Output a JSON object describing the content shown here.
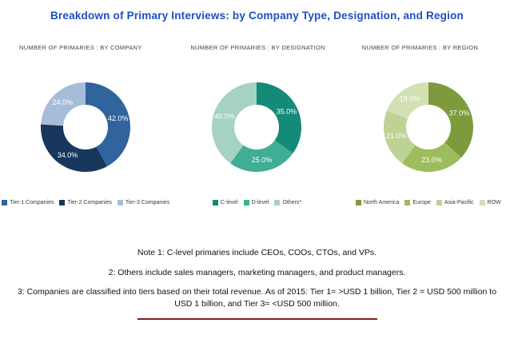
{
  "title": "Breakdown  of Primary Interviews:  by Company Type, Designation,  and Region",
  "accent_colors": {
    "title_blue": "#1d4fc4",
    "footer_red": "#8c1a1a"
  },
  "chart_data": [
    {
      "type": "pie",
      "variant": "donut",
      "title": "NUMBER OF PRIMARIES : BY COMPANY",
      "start_angle_deg": -90,
      "direction": "clockwise",
      "legend_position": "bottom",
      "slices": [
        {
          "label": "Tier-1 Companies",
          "value": 42.0,
          "display": "42.0%",
          "color": "#31639c"
        },
        {
          "label": "Tier-2 Companies",
          "value": 34.0,
          "display": "34.0%",
          "color": "#17375d"
        },
        {
          "label": "Tier-3 Companies",
          "value": 24.0,
          "display": "24.0%",
          "color": "#a7bcd9"
        }
      ]
    },
    {
      "type": "pie",
      "variant": "donut",
      "title": "NUMBER OF PRIMARIES : BY DESIGNATION",
      "start_angle_deg": -90,
      "direction": "clockwise",
      "legend_position": "bottom",
      "slices": [
        {
          "label": "C-level",
          "value": 35.0,
          "display": "35.0%",
          "color": "#148a78"
        },
        {
          "label": "D-level",
          "value": 25.0,
          "display": "25.0%",
          "color": "#3fae94"
        },
        {
          "label": "Others*",
          "value": 40.0,
          "display": "40.0%",
          "color": "#a6d2c2"
        }
      ]
    },
    {
      "type": "pie",
      "variant": "donut",
      "title": "NUMBER OF PRIMARIES : BY REGION",
      "start_angle_deg": -90,
      "direction": "clockwise",
      "legend_position": "bottom",
      "slices": [
        {
          "label": "North America",
          "value": 37.0,
          "display": "37.0%",
          "color": "#7d9a3c"
        },
        {
          "label": "Europe",
          "value": 23.0,
          "display": "23.0%",
          "color": "#9dbd5c"
        },
        {
          "label": "Asia-Pacific",
          "value": 21.0,
          "display": "21.0%",
          "color": "#bcd394"
        },
        {
          "label": "ROW",
          "value": 19.0,
          "display": "19.0%",
          "color": "#d2e0b3"
        }
      ]
    }
  ],
  "notes": [
    "Note 1: C-level primaries include CEOs, COOs, CTOs, and VPs.",
    "2: Others include sales managers, marketing managers, and product managers.",
    "3: Companies are classified into tiers based on their total revenue. As of 2015: Tier 1= >USD 1 billion, Tier 2 = USD 500 million to USD 1 billion, and Tier 3= <USD 500 million."
  ]
}
